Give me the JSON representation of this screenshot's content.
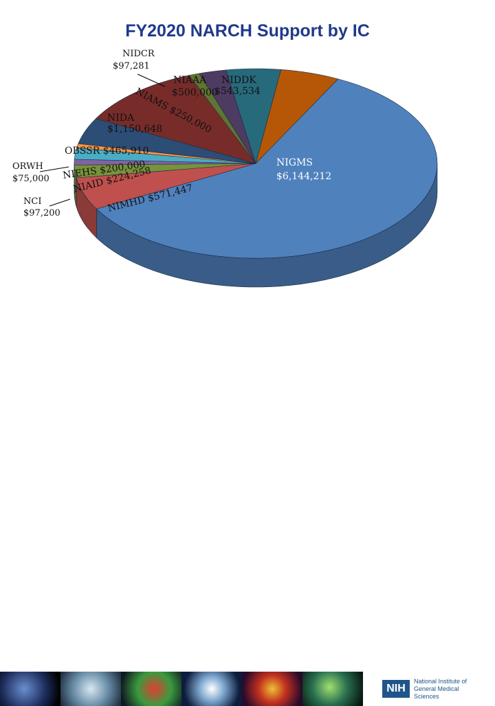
{
  "chart_data": {
    "type": "pie",
    "title": "FY2020 NARCH Support by IC",
    "slices": [
      {
        "name": "NIGMS",
        "amount": "$6,144,212",
        "value": 6144212,
        "color": "#4f81bd"
      },
      {
        "name": "NIMHD",
        "amount": "$571,447",
        "value": 571447,
        "color": "#c0504d"
      },
      {
        "name": "NIAID",
        "amount": "$224,258",
        "value": 224258,
        "color": "#77933c"
      },
      {
        "name": "NCI",
        "amount": "$97,200",
        "value": 97200,
        "color": "#8064a2"
      },
      {
        "name": "NIEHS",
        "amount": "$200,000",
        "value": 200000,
        "color": "#4bacc6"
      },
      {
        "name": "ORWH",
        "amount": "$75,000",
        "value": 75000,
        "color": "#f79646"
      },
      {
        "name": "OBSSR",
        "amount": "$465,910",
        "value": 465910,
        "color": "#2c4d75"
      },
      {
        "name": "NIDA",
        "amount": "$1,150,648",
        "value": 1150648,
        "color": "#772c2a"
      },
      {
        "name": "NIDCR",
        "amount": "$97,281",
        "value": 97281,
        "color": "#5f7530"
      },
      {
        "name": "NIAMS",
        "amount": "$250,000",
        "value": 250000,
        "color": "#4d3b62"
      },
      {
        "name": "NIAAA",
        "amount": "$500,000",
        "value": 500000,
        "color": "#276a7c"
      },
      {
        "name": "NIDDK",
        "amount": "$543,534",
        "value": 543534,
        "color": "#b65708"
      }
    ]
  },
  "footer": {
    "logo_mark": "NIH",
    "logo_line1": "National Institute of",
    "logo_line2": "General Medical Sciences"
  }
}
